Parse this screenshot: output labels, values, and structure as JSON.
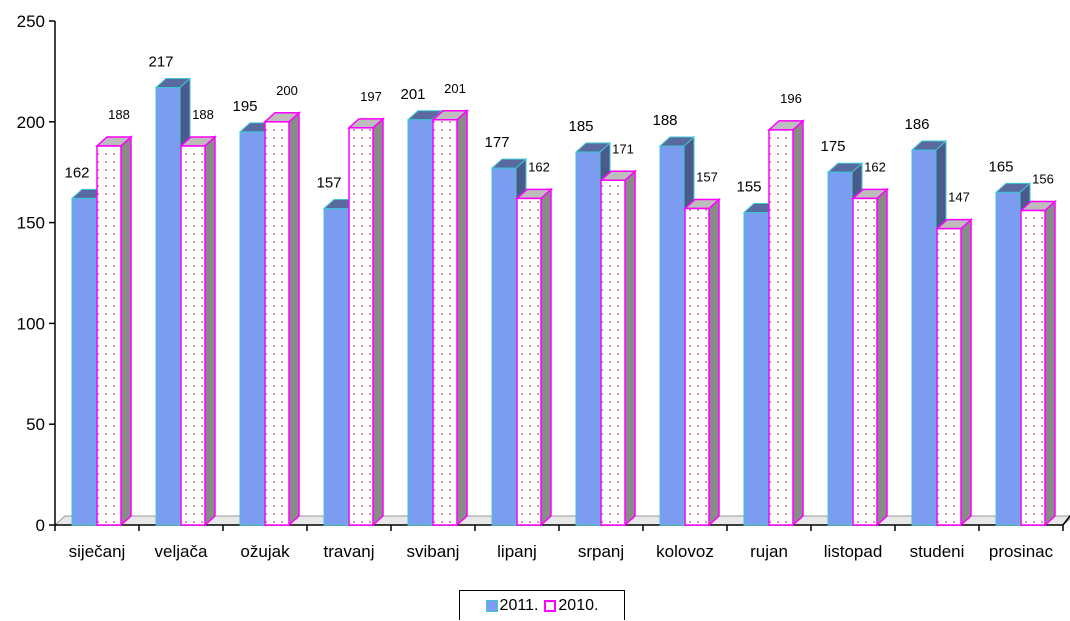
{
  "chart_data": {
    "type": "bar",
    "categories": [
      "siječanj",
      "veljača",
      "ožujak",
      "travanj",
      "svibanj",
      "lipanj",
      "srpanj",
      "kolovoz",
      "rujan",
      "listopad",
      "studeni",
      "prosinac"
    ],
    "series": [
      {
        "name": "2011.",
        "values": [
          162,
          217,
          195,
          157,
          201,
          177,
          185,
          188,
          155,
          175,
          186,
          165
        ],
        "color": "#7b9cf0",
        "edge": "#3cc8d0"
      },
      {
        "name": "2010.",
        "values": [
          188,
          188,
          200,
          197,
          201,
          162,
          171,
          157,
          196,
          162,
          147,
          156
        ],
        "color": "#ffffff",
        "edge": "#ff00ff"
      }
    ],
    "yticks": [
      "0",
      "50",
      "100",
      "150",
      "200",
      "250"
    ],
    "ylim": [
      0,
      250
    ],
    "legend_position": "bottom-center",
    "grid": false
  }
}
